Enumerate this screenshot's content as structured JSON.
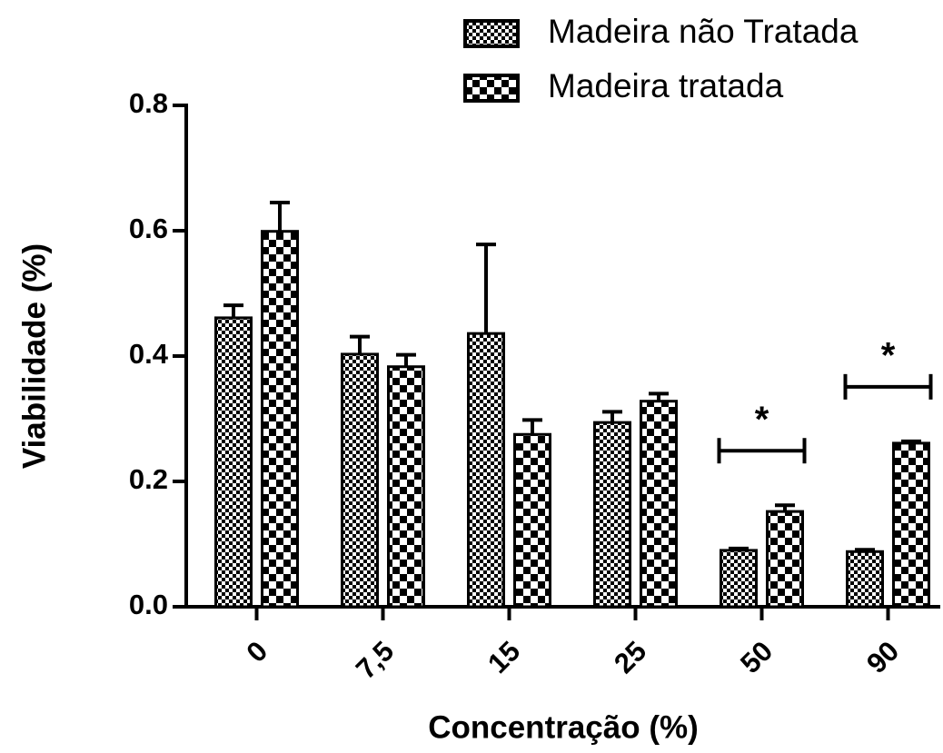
{
  "chart_data": {
    "type": "bar",
    "x_label": "Concentração (%)",
    "y_label": "Viabilidade (%)",
    "categories": [
      "0",
      "7,5",
      "15",
      "25",
      "50",
      "90"
    ],
    "series": [
      {
        "name": "Madeira não Tratada",
        "color": "#000000",
        "values": [
          0.461,
          0.403,
          0.436,
          0.294,
          0.09,
          0.088
        ],
        "errors": [
          0.02,
          0.028,
          0.142,
          0.017,
          0.003,
          0.003
        ]
      },
      {
        "name": "Madeira tratada",
        "color": "#000000",
        "values": [
          0.599,
          0.383,
          0.275,
          0.328,
          0.152,
          0.261
        ],
        "errors": [
          0.046,
          0.019,
          0.023,
          0.012,
          0.01,
          0.003
        ]
      }
    ],
    "significance": [
      null,
      null,
      null,
      null,
      "*",
      "*"
    ],
    "ylim": [
      0,
      0.8
    ],
    "yticks": [
      {
        "value": 0,
        "label": "0.0"
      },
      0.2,
      0.4,
      0.6,
      0.8
    ],
    "legend": "top-right"
  }
}
